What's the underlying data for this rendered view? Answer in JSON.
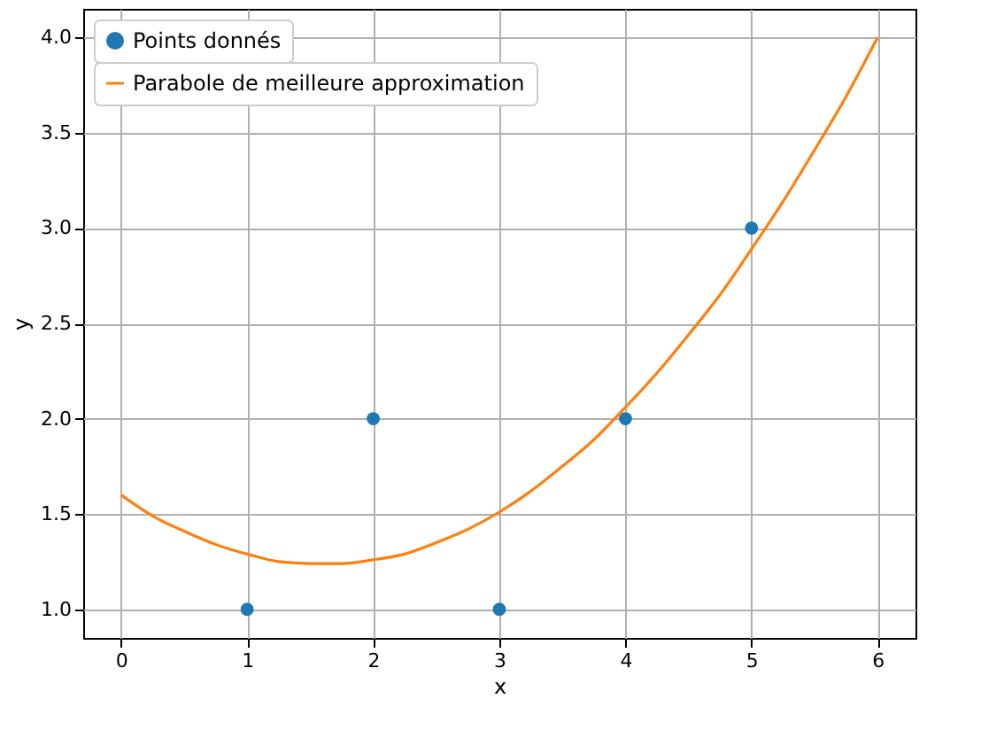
{
  "chart_data": {
    "type": "scatter",
    "xlabel": "x",
    "ylabel": "y",
    "xlim": [
      -0.3,
      6.3
    ],
    "ylim": [
      0.85,
      4.15
    ],
    "xticks": [
      0,
      1,
      2,
      3,
      4,
      5,
      6
    ],
    "yticks": [
      {
        "value": 1,
        "label": "1.0"
      },
      {
        "value": 1.5,
        "label": "1.5"
      },
      {
        "value": 2,
        "label": "2.0"
      },
      {
        "value": 2.5,
        "label": "2.5"
      },
      {
        "value": 3,
        "label": "3.0"
      },
      {
        "value": 3.5,
        "label": "3.5"
      },
      {
        "value": 4,
        "label": "4.0"
      }
    ],
    "grid": true,
    "legend": "top left",
    "series": [
      {
        "name": "Points donnés",
        "marker": "circle",
        "color": "#1f77b4",
        "x": [
          1,
          2,
          3,
          4,
          5
        ],
        "values": [
          1,
          2,
          1,
          2,
          3
        ]
      },
      {
        "name": "Parabole de meilleure approximation",
        "type": "line",
        "marker": "none",
        "line_style": "solid",
        "color": "#ff7f0e",
        "x": [
          0,
          0.25,
          0.5,
          0.75,
          1,
          1.25,
          1.5,
          1.75,
          2,
          2.25,
          2.5,
          2.75,
          3,
          3.25,
          3.5,
          3.75,
          4,
          4.25,
          4.5,
          4.75,
          5,
          5.25,
          5.5,
          5.75,
          6
        ],
        "values": [
          1.6,
          1.49,
          1.41,
          1.34,
          1.29,
          1.25,
          1.24,
          1.24,
          1.26,
          1.29,
          1.35,
          1.42,
          1.51,
          1.62,
          1.75,
          1.89,
          2.06,
          2.24,
          2.44,
          2.65,
          2.89,
          3.14,
          3.41,
          3.69,
          4.0
        ]
      }
    ]
  }
}
